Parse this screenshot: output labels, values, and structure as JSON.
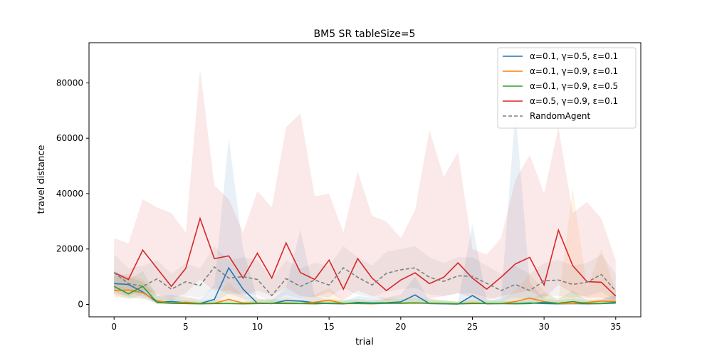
{
  "chart_data": {
    "type": "line",
    "title": "BM5  SR  tableSize=5",
    "xlabel": "trial",
    "ylabel": "travel distance",
    "xlim": [
      -1.75,
      36.75
    ],
    "ylim": [
      -4500,
      94500
    ],
    "xticks": [
      0,
      5,
      10,
      15,
      20,
      25,
      30,
      35
    ],
    "yticks": [
      0,
      20000,
      40000,
      60000,
      80000
    ],
    "legend_position": "top-right",
    "grid": false,
    "x": [
      0,
      1,
      2,
      3,
      4,
      5,
      6,
      7,
      8,
      9,
      10,
      11,
      12,
      13,
      14,
      15,
      16,
      17,
      18,
      19,
      20,
      21,
      22,
      23,
      24,
      25,
      26,
      27,
      28,
      29,
      30,
      31,
      32,
      33,
      34,
      35
    ],
    "series": [
      {
        "name": "α=0.1, γ=0.5, ε=0.1",
        "color": "#1f77b4",
        "dash": false,
        "values": [
          7500,
          7200,
          4500,
          800,
          1000,
          600,
          300,
          1800,
          13200,
          5500,
          400,
          300,
          1400,
          1200,
          600,
          300,
          200,
          700,
          500,
          600,
          900,
          3400,
          300,
          200,
          100,
          3200,
          200,
          300,
          300,
          500,
          300,
          200,
          300,
          200,
          300,
          500
        ],
        "upper": [
          12000,
          10000,
          8000,
          3000,
          3500,
          2500,
          2000,
          7000,
          60000,
          20000,
          2000,
          1500,
          6000,
          27000,
          3000,
          1500,
          1200,
          3000,
          2500,
          2500,
          3500,
          10000,
          1500,
          1200,
          900,
          29000,
          1500,
          2000,
          70000,
          8000,
          2000,
          1500,
          2000,
          1500,
          2000,
          3000
        ],
        "lower": [
          5000,
          5000,
          2500,
          200,
          300,
          200,
          100,
          500,
          4000,
          2000,
          100,
          100,
          300,
          300,
          200,
          100,
          50,
          200,
          150,
          200,
          300,
          1000,
          100,
          50,
          30,
          500,
          50,
          80,
          80,
          150,
          80,
          50,
          80,
          50,
          80,
          150
        ]
      },
      {
        "name": "α=0.1, γ=0.9, ε=0.1",
        "color": "#ff7f0e",
        "dash": false,
        "values": [
          5000,
          5200,
          4200,
          1300,
          400,
          800,
          300,
          400,
          1800,
          500,
          500,
          300,
          500,
          300,
          800,
          1500,
          300,
          300,
          200,
          400,
          500,
          600,
          400,
          300,
          200,
          500,
          300,
          300,
          1000,
          2300,
          1000,
          300,
          300,
          700,
          1200,
          1000
        ],
        "upper": [
          10000,
          11000,
          9000,
          4000,
          2000,
          3000,
          1500,
          2000,
          8000,
          3000,
          2500,
          1500,
          2500,
          1500,
          3500,
          6000,
          1500,
          1500,
          1000,
          2000,
          2500,
          3000,
          2000,
          1500,
          1000,
          2500,
          1500,
          1500,
          5000,
          11000,
          5000,
          1500,
          42000,
          6000,
          20000,
          5000
        ],
        "lower": [
          2500,
          2500,
          2000,
          300,
          100,
          200,
          80,
          100,
          500,
          150,
          150,
          80,
          150,
          80,
          200,
          400,
          80,
          80,
          50,
          100,
          150,
          150,
          100,
          80,
          50,
          150,
          80,
          80,
          300,
          600,
          300,
          80,
          80,
          200,
          300,
          300
        ]
      },
      {
        "name": "α=0.1, γ=0.9, ε=0.5",
        "color": "#2ca02c",
        "dash": false,
        "values": [
          6500,
          3800,
          6500,
          700,
          400,
          300,
          200,
          300,
          300,
          200,
          300,
          400,
          300,
          300,
          200,
          400,
          300,
          400,
          300,
          400,
          400,
          500,
          400,
          300,
          200,
          300,
          300,
          300,
          200,
          300,
          800,
          400,
          1000,
          300,
          300,
          800
        ],
        "upper": [
          12000,
          9000,
          12000,
          3000,
          2000,
          1500,
          1000,
          1500,
          1500,
          1000,
          1500,
          2000,
          1500,
          1500,
          1000,
          2000,
          1500,
          2000,
          1500,
          2000,
          2000,
          2500,
          2000,
          1500,
          1000,
          1500,
          1500,
          1500,
          1000,
          1500,
          4000,
          2000,
          5000,
          1500,
          1500,
          4000
        ],
        "lower": [
          3500,
          1800,
          3500,
          200,
          100,
          80,
          50,
          80,
          80,
          50,
          80,
          100,
          80,
          80,
          50,
          100,
          80,
          100,
          80,
          100,
          100,
          150,
          100,
          80,
          50,
          80,
          80,
          80,
          50,
          80,
          200,
          100,
          300,
          80,
          80,
          200
        ]
      },
      {
        "name": "α=0.5, γ=0.9, ε=0.1",
        "color": "#d62728",
        "dash": false,
        "values": [
          11500,
          9000,
          19600,
          13000,
          6500,
          13000,
          31000,
          16500,
          17500,
          9500,
          18500,
          9500,
          22200,
          11500,
          9000,
          16000,
          5500,
          16500,
          9500,
          5000,
          8800,
          11400,
          7500,
          9800,
          15000,
          9500,
          5500,
          9800,
          14600,
          17000,
          7000,
          26800,
          14000,
          8200,
          8000,
          3000
        ],
        "upper": [
          24000,
          22000,
          38000,
          35000,
          33000,
          26000,
          85000,
          43000,
          38000,
          26000,
          41000,
          35000,
          64000,
          69000,
          39000,
          40000,
          26000,
          48000,
          32000,
          30000,
          24000,
          34000,
          63000,
          46000,
          55000,
          20000,
          18000,
          24000,
          45000,
          54000,
          40000,
          64000,
          33000,
          37000,
          31000,
          16000
        ],
        "lower": [
          4000,
          3000,
          5000,
          4000,
          2000,
          4000,
          9000,
          5000,
          5000,
          3000,
          5000,
          3000,
          6000,
          3000,
          2500,
          4500,
          1500,
          5000,
          3000,
          1500,
          2500,
          3000,
          2000,
          3000,
          4000,
          2500,
          1500,
          3000,
          4000,
          5000,
          2000,
          7000,
          4000,
          2500,
          2500,
          800
        ]
      },
      {
        "name": "RandomAgent",
        "color": "#7f7f7f",
        "dash": true,
        "values": [
          11500,
          7500,
          6500,
          9200,
          5500,
          8200,
          6800,
          13500,
          9500,
          10000,
          9000,
          3200,
          9300,
          6500,
          8800,
          7000,
          13200,
          9800,
          7000,
          11200,
          12500,
          13200,
          9800,
          8300,
          10300,
          10100,
          7600,
          5000,
          7200,
          5000,
          8500,
          8800,
          7200,
          8000,
          10800,
          4800
        ],
        "upper": [
          18000,
          13000,
          14000,
          16000,
          11000,
          15000,
          13000,
          21000,
          16000,
          17000,
          16000,
          9000,
          16000,
          13000,
          15000,
          14000,
          21000,
          17000,
          14000,
          19000,
          20000,
          21000,
          17000,
          15000,
          17000,
          17000,
          14000,
          11000,
          14000,
          11000,
          15000,
          16000,
          14000,
          15000,
          18000,
          11000
        ],
        "lower": [
          5000,
          2500,
          2000,
          3500,
          1500,
          3000,
          2500,
          6000,
          3500,
          4000,
          3500,
          800,
          3500,
          2000,
          3000,
          2500,
          6000,
          3500,
          2500,
          4500,
          5500,
          6000,
          3500,
          3000,
          4000,
          4000,
          2500,
          1500,
          2500,
          1500,
          3000,
          3000,
          2500,
          3000,
          4500,
          1500
        ]
      }
    ]
  }
}
